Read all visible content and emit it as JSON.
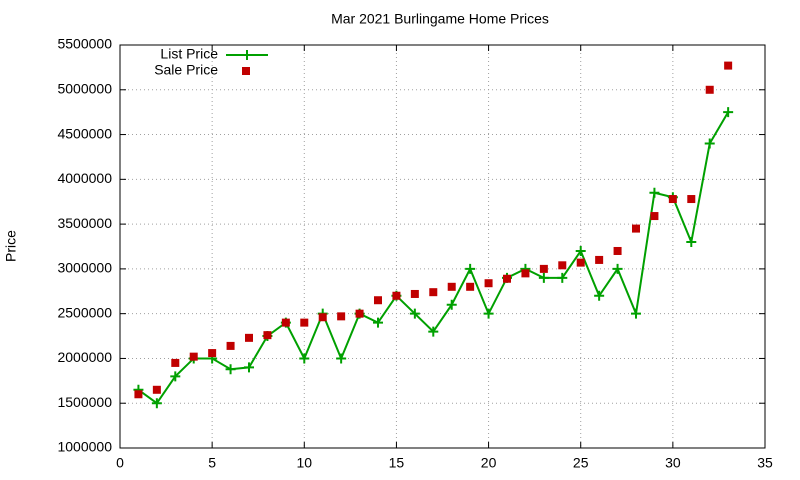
{
  "chart_data": {
    "type": "line",
    "title": "Mar 2021 Burlingame Home Prices",
    "y_label": "Price",
    "x": [
      1,
      2,
      3,
      4,
      5,
      6,
      7,
      8,
      9,
      10,
      11,
      12,
      13,
      14,
      15,
      16,
      17,
      18,
      19,
      20,
      21,
      22,
      23,
      24,
      25,
      26,
      27,
      28,
      29,
      30,
      31,
      32,
      33
    ],
    "series": [
      {
        "name": "List Price",
        "color": "#00a000",
        "style": "linespoints",
        "values": [
          1650000,
          1500000,
          1800000,
          2000000,
          2000000,
          1880000,
          1900000,
          2250000,
          2400000,
          2000000,
          2500000,
          2000000,
          2500000,
          2400000,
          2700000,
          2500000,
          2300000,
          2600000,
          3000000,
          2500000,
          2900000,
          3000000,
          2900000,
          2900000,
          3200000,
          2700000,
          3000000,
          2500000,
          3850000,
          3800000,
          3300000,
          4400000,
          4750000
        ]
      },
      {
        "name": "Sale Price",
        "color": "#c00000",
        "style": "points",
        "values": [
          1600000,
          1650000,
          1950000,
          2020000,
          2060000,
          2140000,
          2230000,
          2260000,
          2400000,
          2400000,
          2460000,
          2470000,
          2500000,
          2650000,
          2700000,
          2720000,
          2740000,
          2800000,
          2800000,
          2840000,
          2890000,
          2950000,
          3000000,
          3040000,
          3070000,
          3100000,
          3200000,
          3450000,
          3590000,
          3780000,
          3780000,
          5000000,
          5270000
        ]
      }
    ],
    "xlim": [
      0,
      35
    ],
    "xticks": [
      0,
      5,
      10,
      15,
      20,
      25,
      30,
      35
    ],
    "ylim": [
      1000000,
      5500000
    ],
    "yticks": [
      1000000,
      1500000,
      2000000,
      2500000,
      3000000,
      3500000,
      4000000,
      4500000,
      5000000,
      5500000
    ],
    "grid": true,
    "legend": "top-left"
  }
}
